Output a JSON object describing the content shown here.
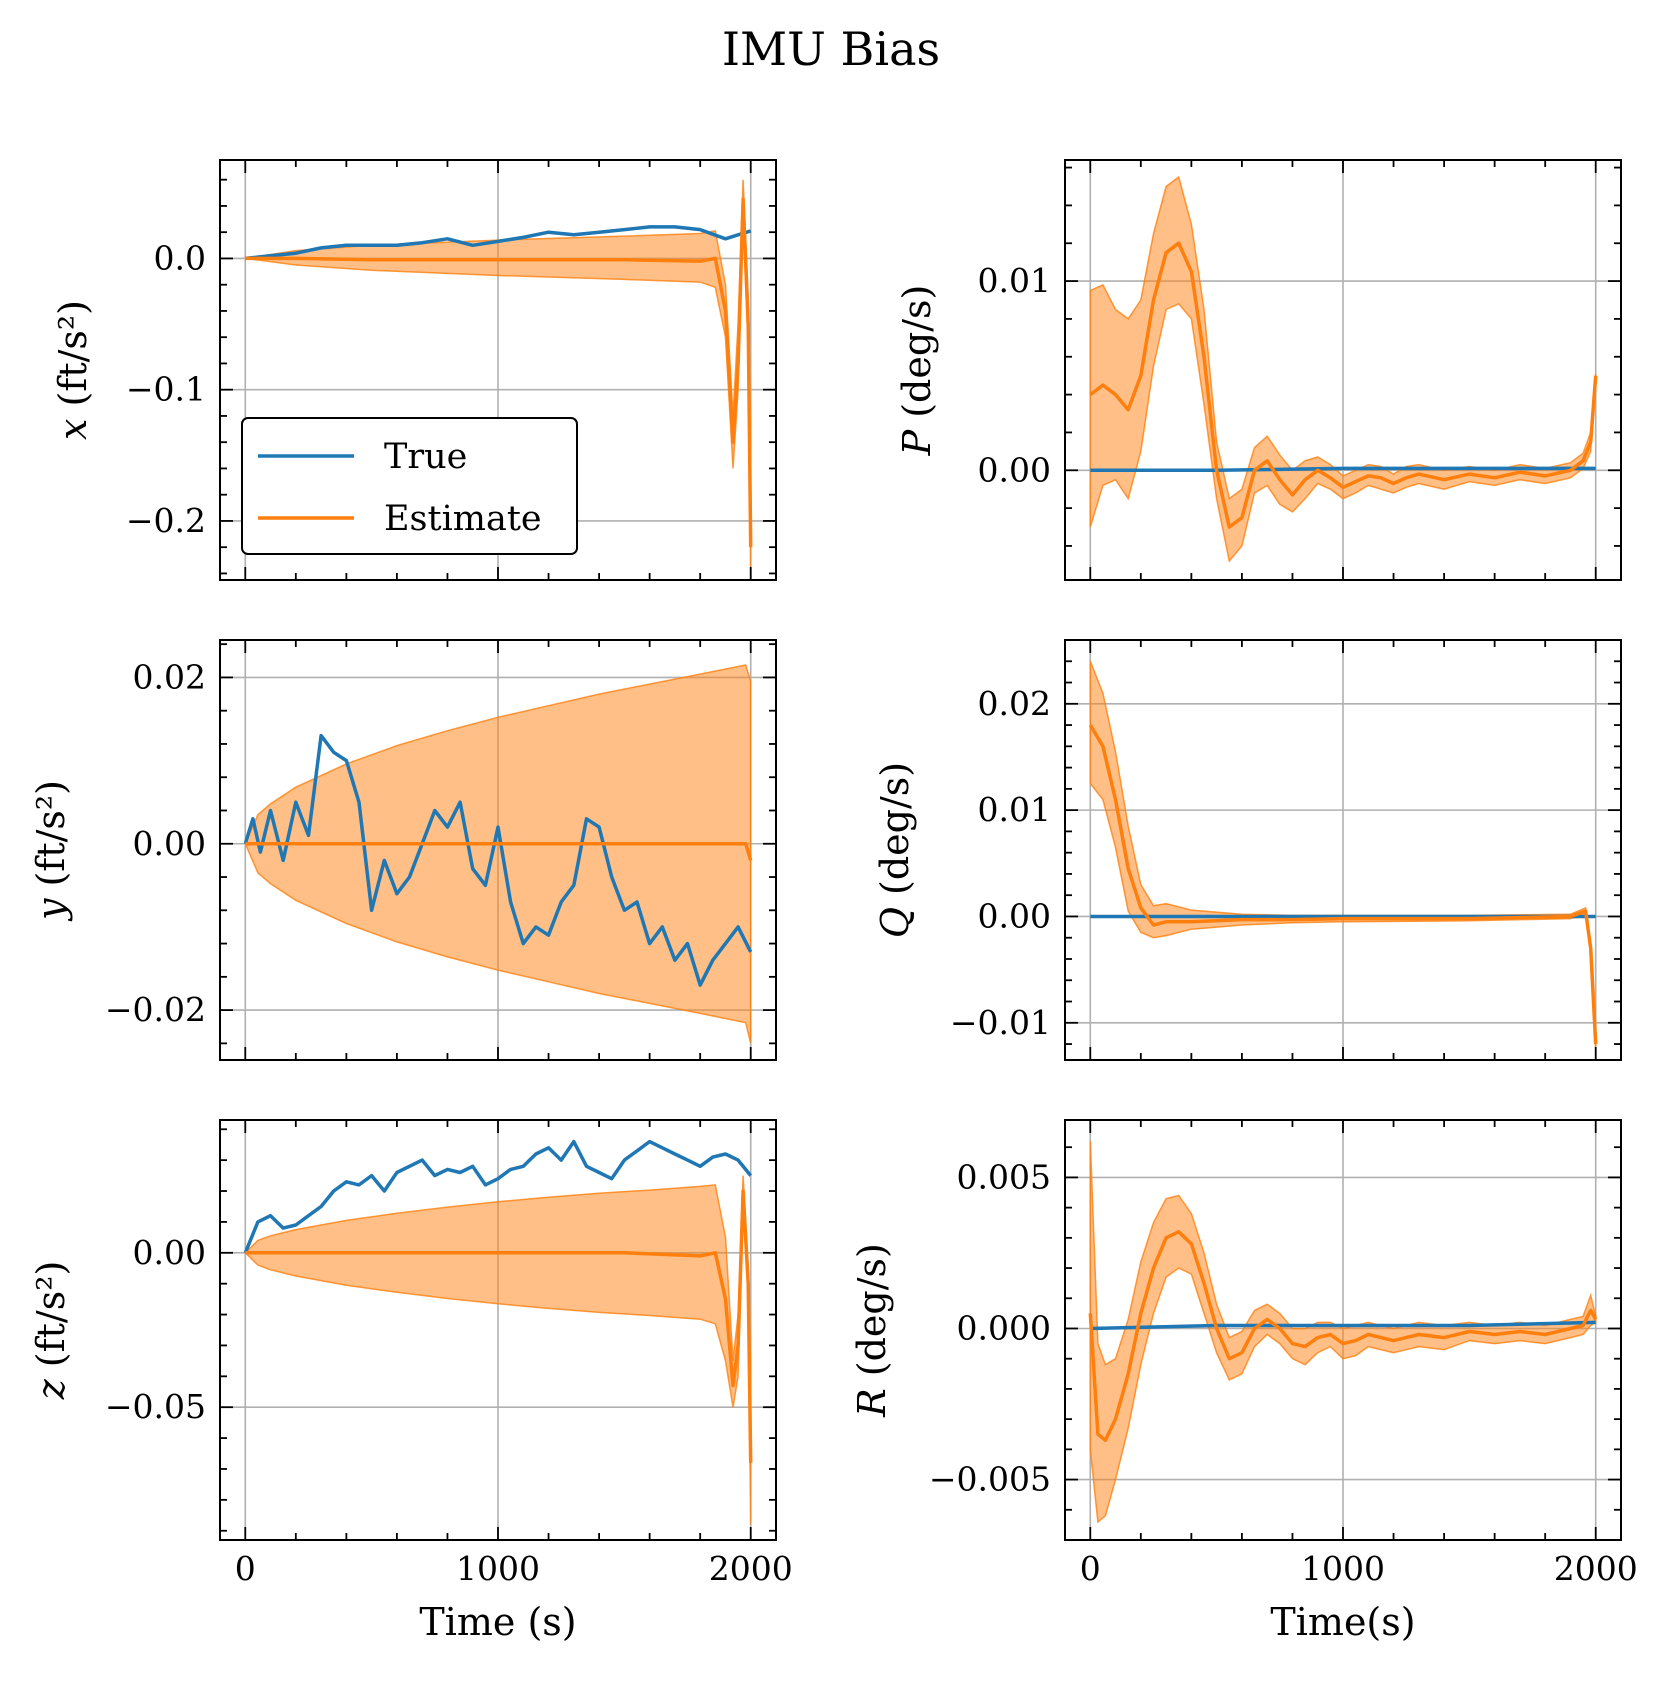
{
  "title": "IMU Bias",
  "colors": {
    "true": "#1f77b4",
    "estimate": "#ff7f0e",
    "band": "#ff7f0e",
    "grid": "#b0b0b0"
  },
  "legend": {
    "placement": "lower-left",
    "entries": [
      "True",
      "Estimate"
    ]
  },
  "chart_data": [
    {
      "id": "x",
      "type": "line",
      "grid": true,
      "ylabel": {
        "sym": "x",
        "unit": "(ft/s²)"
      },
      "xlabel": "",
      "xlim": [
        -100,
        2100
      ],
      "ylim": [
        -0.245,
        0.075
      ],
      "xticks": [
        0,
        1000,
        2000
      ],
      "xtick_labels": [],
      "yticks": [
        -0.2,
        -0.1,
        0.0
      ],
      "ytick_labels": [
        "−0.2",
        "−0.1",
        "0.0"
      ],
      "true": {
        "name": "True",
        "x": [
          0,
          100,
          200,
          300,
          400,
          500,
          600,
          700,
          800,
          900,
          1000,
          1100,
          1200,
          1300,
          1400,
          1500,
          1600,
          1700,
          1800,
          1900,
          1950,
          2000
        ],
        "y": [
          0.0,
          0.002,
          0.004,
          0.008,
          0.01,
          0.01,
          0.01,
          0.012,
          0.015,
          0.01,
          0.013,
          0.016,
          0.02,
          0.018,
          0.02,
          0.022,
          0.024,
          0.024,
          0.022,
          0.015,
          0.018,
          0.021
        ]
      },
      "estimate": {
        "name": "Estimate",
        "x": [
          0,
          200,
          500,
          1000,
          1500,
          1800,
          1860,
          1900,
          1930,
          1950,
          1970,
          1990,
          2000
        ],
        "y": [
          0.0,
          0.0,
          -0.001,
          -0.001,
          -0.001,
          -0.002,
          0.0,
          -0.04,
          -0.14,
          -0.08,
          0.045,
          -0.05,
          -0.22
        ]
      },
      "band": {
        "x": [
          0,
          200,
          500,
          1000,
          1500,
          1800,
          1860,
          1900,
          1930,
          1950,
          1970,
          1990,
          2000
        ],
        "upper": [
          0.0,
          0.006,
          0.01,
          0.014,
          0.017,
          0.019,
          0.021,
          -0.02,
          -0.12,
          -0.05,
          0.06,
          -0.03,
          -0.2
        ],
        "lower": [
          0.0,
          -0.005,
          -0.009,
          -0.013,
          -0.016,
          -0.018,
          -0.022,
          -0.06,
          -0.16,
          -0.1,
          0.03,
          -0.07,
          -0.24
        ]
      }
    },
    {
      "id": "P",
      "type": "line",
      "grid": true,
      "ylabel": {
        "sym": "P",
        "unit": "(deg/s)"
      },
      "xlabel": "",
      "xlim": [
        -100,
        2100
      ],
      "ylim": [
        -0.0058,
        0.0164
      ],
      "xticks": [
        0,
        1000,
        2000
      ],
      "xtick_labels": [],
      "yticks": [
        0.0,
        0.01
      ],
      "ytick_labels": [
        "0.00",
        "0.01"
      ],
      "true": {
        "name": "True",
        "x": [
          0,
          500,
          1000,
          1500,
          2000
        ],
        "y": [
          0.0,
          0.0,
          0.0001,
          0.0001,
          0.0001
        ]
      },
      "estimate": {
        "name": "Estimate",
        "x": [
          0,
          50,
          100,
          150,
          200,
          250,
          300,
          350,
          400,
          450,
          500,
          550,
          600,
          650,
          700,
          750,
          800,
          850,
          900,
          950,
          1000,
          1050,
          1100,
          1150,
          1200,
          1250,
          1300,
          1400,
          1500,
          1600,
          1700,
          1800,
          1900,
          1950,
          1980,
          2000
        ],
        "y": [
          0.004,
          0.0045,
          0.004,
          0.0032,
          0.005,
          0.009,
          0.0115,
          0.012,
          0.0105,
          0.006,
          0.0,
          -0.003,
          -0.0025,
          0.0,
          0.0005,
          -0.0005,
          -0.0013,
          -0.0005,
          0.0,
          -0.0004,
          -0.0009,
          -0.0006,
          -0.0003,
          -0.0004,
          -0.0007,
          -0.0004,
          -0.0002,
          -0.0005,
          -0.0002,
          -0.0004,
          -0.0001,
          -0.0003,
          0.0,
          0.0005,
          0.0015,
          0.005
        ]
      },
      "band": {
        "x": [
          0,
          50,
          100,
          150,
          200,
          250,
          300,
          350,
          400,
          450,
          500,
          550,
          600,
          650,
          700,
          750,
          800,
          850,
          900,
          950,
          1000,
          1050,
          1100,
          1150,
          1200,
          1250,
          1300,
          1400,
          1500,
          1600,
          1700,
          1800,
          1900,
          1950,
          1980,
          2000
        ],
        "upper": [
          0.0095,
          0.0098,
          0.0085,
          0.008,
          0.009,
          0.0125,
          0.015,
          0.0155,
          0.013,
          0.0085,
          0.0015,
          -0.0015,
          -0.001,
          0.0012,
          0.0018,
          0.0008,
          0.0,
          0.0005,
          0.0007,
          0.0003,
          -0.0003,
          0.0,
          0.0003,
          0.0002,
          -0.0002,
          0.0002,
          0.0003,
          0.0,
          0.0002,
          0.0,
          0.0003,
          0.0001,
          0.0004,
          0.0009,
          0.002,
          0.0051
        ],
        "lower": [
          -0.003,
          -0.0008,
          -0.0005,
          -0.0015,
          0.001,
          0.0055,
          0.0085,
          0.0088,
          0.008,
          0.0035,
          -0.0015,
          -0.0048,
          -0.004,
          -0.0012,
          -0.0008,
          -0.0018,
          -0.0022,
          -0.0015,
          -0.0007,
          -0.001,
          -0.0015,
          -0.0012,
          -0.0008,
          -0.001,
          -0.0012,
          -0.0009,
          -0.0007,
          -0.001,
          -0.0006,
          -0.0008,
          -0.0005,
          -0.0007,
          -0.0004,
          0.0001,
          0.001,
          0.0049
        ]
      }
    },
    {
      "id": "y",
      "type": "line",
      "grid": true,
      "ylabel": {
        "sym": "y",
        "unit": "(ft/s²)"
      },
      "xlabel": "",
      "xlim": [
        -100,
        2100
      ],
      "ylim": [
        -0.026,
        0.0245
      ],
      "xticks": [
        0,
        1000,
        2000
      ],
      "xtick_labels": [],
      "yticks": [
        -0.02,
        0.0,
        0.02
      ],
      "ytick_labels": [
        "−0.02",
        "0.00",
        "0.02"
      ],
      "true": {
        "name": "True",
        "x": [
          0,
          30,
          60,
          100,
          150,
          200,
          250,
          300,
          350,
          400,
          450,
          500,
          550,
          600,
          650,
          700,
          750,
          800,
          850,
          900,
          950,
          1000,
          1050,
          1100,
          1150,
          1200,
          1250,
          1300,
          1350,
          1400,
          1450,
          1500,
          1550,
          1600,
          1650,
          1700,
          1750,
          1800,
          1850,
          1900,
          1950,
          2000
        ],
        "y": [
          0.0,
          0.003,
          -0.001,
          0.004,
          -0.002,
          0.005,
          0.001,
          0.013,
          0.011,
          0.01,
          0.005,
          -0.008,
          -0.002,
          -0.006,
          -0.004,
          0.0,
          0.004,
          0.002,
          0.005,
          -0.003,
          -0.005,
          0.002,
          -0.007,
          -0.012,
          -0.01,
          -0.011,
          -0.007,
          -0.005,
          0.003,
          0.002,
          -0.004,
          -0.008,
          -0.007,
          -0.012,
          -0.01,
          -0.014,
          -0.012,
          -0.017,
          -0.014,
          -0.012,
          -0.01,
          -0.013
        ]
      },
      "estimate": {
        "name": "Estimate",
        "x": [
          0,
          500,
          1000,
          1500,
          1980,
          2000
        ],
        "y": [
          0.0,
          0.0,
          0.0,
          0.0,
          0.0,
          -0.002
        ]
      },
      "band": {
        "x": [
          0,
          50,
          100,
          200,
          400,
          600,
          800,
          1000,
          1200,
          1400,
          1600,
          1800,
          1980,
          2000
        ],
        "upper": [
          0.0,
          0.0035,
          0.0048,
          0.0068,
          0.0096,
          0.0118,
          0.0136,
          0.0152,
          0.0166,
          0.018,
          0.0192,
          0.0204,
          0.0215,
          0.0195
        ],
        "lower": [
          0.0,
          -0.0035,
          -0.0048,
          -0.0068,
          -0.0096,
          -0.0118,
          -0.0136,
          -0.0152,
          -0.0166,
          -0.018,
          -0.0192,
          -0.0204,
          -0.0215,
          -0.024
        ]
      }
    },
    {
      "id": "Q",
      "type": "line",
      "grid": true,
      "ylabel": {
        "sym": "Q",
        "unit": "(deg/s)"
      },
      "xlabel": "",
      "xlim": [
        -100,
        2100
      ],
      "ylim": [
        -0.0135,
        0.026
      ],
      "xticks": [
        0,
        1000,
        2000
      ],
      "xtick_labels": [],
      "yticks": [
        -0.01,
        0.0,
        0.01,
        0.02
      ],
      "ytick_labels": [
        "−0.01",
        "0.00",
        "0.01",
        "0.02"
      ],
      "true": {
        "name": "True",
        "x": [
          0,
          500,
          1000,
          1500,
          2000
        ],
        "y": [
          0.0,
          0.0,
          0.0,
          0.0,
          0.0
        ]
      },
      "estimate": {
        "name": "Estimate",
        "x": [
          0,
          50,
          100,
          150,
          200,
          250,
          300,
          400,
          600,
          800,
          1000,
          1500,
          1900,
          1960,
          1980,
          2000
        ],
        "y": [
          0.018,
          0.016,
          0.011,
          0.0045,
          0.0008,
          -0.0008,
          -0.0005,
          -0.0005,
          -0.0003,
          -0.0003,
          -0.0002,
          -0.0002,
          0.0,
          0.0005,
          -0.003,
          -0.012
        ]
      },
      "band": {
        "x": [
          0,
          50,
          100,
          150,
          200,
          250,
          300,
          400,
          600,
          800,
          1000,
          1500,
          1900,
          1960,
          1980,
          2000
        ],
        "upper": [
          0.024,
          0.021,
          0.0155,
          0.0085,
          0.003,
          0.001,
          0.0012,
          0.0006,
          0.0002,
          0.0001,
          0.0001,
          0.0001,
          0.0002,
          0.0008,
          -0.0025,
          -0.0115
        ],
        "lower": [
          0.0125,
          0.011,
          0.0065,
          0.0005,
          -0.0015,
          -0.002,
          -0.0018,
          -0.0012,
          -0.0008,
          -0.0006,
          -0.0005,
          -0.0004,
          -0.0002,
          0.0002,
          -0.0035,
          -0.0125
        ]
      }
    },
    {
      "id": "z",
      "type": "line",
      "grid": true,
      "ylabel": {
        "sym": "z",
        "unit": "(ft/s²)"
      },
      "xlabel": "Time (s)",
      "xlim": [
        -100,
        2100
      ],
      "ylim": [
        -0.093,
        0.043
      ],
      "xticks": [
        0,
        1000,
        2000
      ],
      "xtick_labels": [
        "0",
        "1000",
        "2000"
      ],
      "yticks": [
        -0.05,
        0.0
      ],
      "ytick_labels": [
        "−0.05",
        "0.00"
      ],
      "true": {
        "name": "True",
        "x": [
          0,
          50,
          100,
          150,
          200,
          250,
          300,
          350,
          400,
          450,
          500,
          550,
          600,
          650,
          700,
          750,
          800,
          850,
          900,
          950,
          1000,
          1050,
          1100,
          1150,
          1200,
          1250,
          1300,
          1350,
          1400,
          1450,
          1500,
          1550,
          1600,
          1650,
          1700,
          1750,
          1800,
          1850,
          1900,
          1950,
          2000
        ],
        "y": [
          0.0,
          0.01,
          0.012,
          0.008,
          0.009,
          0.012,
          0.015,
          0.02,
          0.023,
          0.022,
          0.025,
          0.02,
          0.026,
          0.028,
          0.03,
          0.025,
          0.027,
          0.026,
          0.028,
          0.022,
          0.024,
          0.027,
          0.028,
          0.032,
          0.034,
          0.03,
          0.036,
          0.028,
          0.026,
          0.024,
          0.03,
          0.033,
          0.036,
          0.034,
          0.032,
          0.03,
          0.028,
          0.031,
          0.032,
          0.03,
          0.025
        ]
      },
      "estimate": {
        "name": "Estimate",
        "x": [
          0,
          500,
          1000,
          1500,
          1800,
          1860,
          1900,
          1930,
          1950,
          1970,
          1990,
          2000
        ],
        "y": [
          0.0,
          0.0,
          0.0,
          0.0,
          -0.001,
          0.0,
          -0.015,
          -0.043,
          -0.03,
          0.02,
          -0.01,
          -0.068
        ]
      },
      "band": {
        "x": [
          0,
          50,
          100,
          200,
          400,
          600,
          800,
          1000,
          1200,
          1400,
          1600,
          1800,
          1860,
          1900,
          1930,
          1950,
          1970,
          1990,
          2000
        ],
        "upper": [
          0.0,
          0.004,
          0.0055,
          0.0075,
          0.0105,
          0.0128,
          0.0148,
          0.0165,
          0.018,
          0.0193,
          0.0203,
          0.0215,
          0.022,
          0.005,
          -0.035,
          -0.02,
          0.025,
          -0.005,
          -0.06
        ],
        "lower": [
          0.0,
          -0.004,
          -0.0055,
          -0.0075,
          -0.0105,
          -0.0128,
          -0.0148,
          -0.0165,
          -0.018,
          -0.0193,
          -0.0203,
          -0.0215,
          -0.023,
          -0.035,
          -0.05,
          -0.04,
          0.015,
          -0.015,
          -0.088
        ]
      }
    },
    {
      "id": "R",
      "type": "line",
      "grid": true,
      "ylabel": {
        "sym": "R",
        "unit": "(deg/s)"
      },
      "xlabel": "Time(s)",
      "xlim": [
        -100,
        2100
      ],
      "ylim": [
        -0.007,
        0.0069
      ],
      "xticks": [
        0,
        1000,
        2000
      ],
      "xtick_labels": [
        "0",
        "1000",
        "2000"
      ],
      "yticks": [
        -0.005,
        0.0,
        0.005
      ],
      "ytick_labels": [
        "−0.005",
        "0.000",
        "0.005"
      ],
      "true": {
        "name": "True",
        "x": [
          0,
          500,
          1000,
          1500,
          2000
        ],
        "y": [
          0.0,
          0.0001,
          0.0001,
          0.0001,
          0.0002
        ]
      },
      "estimate": {
        "name": "Estimate",
        "x": [
          0,
          30,
          60,
          100,
          150,
          200,
          250,
          300,
          350,
          400,
          450,
          500,
          550,
          600,
          650,
          700,
          750,
          800,
          850,
          900,
          950,
          1000,
          1050,
          1100,
          1150,
          1200,
          1300,
          1400,
          1500,
          1600,
          1700,
          1800,
          1900,
          1950,
          1980,
          2000
        ],
        "y": [
          0.0005,
          -0.0035,
          -0.0037,
          -0.003,
          -0.0015,
          0.0005,
          0.002,
          0.003,
          0.0032,
          0.0028,
          0.0015,
          0.0,
          -0.001,
          -0.0008,
          0.0,
          0.0003,
          0.0,
          -0.0005,
          -0.0006,
          -0.0003,
          -0.0002,
          -0.0005,
          -0.0004,
          -0.0002,
          -0.0003,
          -0.0004,
          -0.0002,
          -0.0003,
          -0.0001,
          -0.0002,
          -0.0001,
          -0.0002,
          0.0,
          0.0001,
          0.0006,
          0.0003
        ]
      },
      "band": {
        "x": [
          0,
          30,
          60,
          100,
          150,
          200,
          250,
          300,
          350,
          400,
          450,
          500,
          550,
          600,
          650,
          700,
          750,
          800,
          850,
          900,
          950,
          1000,
          1050,
          1100,
          1150,
          1200,
          1300,
          1400,
          1500,
          1600,
          1700,
          1800,
          1900,
          1950,
          1980,
          2000
        ],
        "upper": [
          0.0062,
          -0.0005,
          -0.0012,
          -0.001,
          0.0003,
          0.0022,
          0.0035,
          0.0043,
          0.0044,
          0.0038,
          0.0025,
          0.0008,
          -0.0003,
          -0.0001,
          0.0006,
          0.0008,
          0.0005,
          0.0,
          0.0,
          0.0002,
          0.0002,
          0.0,
          0.0001,
          0.0002,
          0.0001,
          0.0,
          0.0002,
          0.0001,
          0.0002,
          0.0001,
          0.0002,
          0.0001,
          0.0003,
          0.0004,
          0.0011,
          0.0004
        ],
        "lower": [
          -0.004,
          -0.0064,
          -0.0062,
          -0.005,
          -0.0033,
          -0.0012,
          0.0005,
          0.0017,
          0.002,
          0.0018,
          0.0005,
          -0.0008,
          -0.0017,
          -0.0015,
          -0.0006,
          -0.0002,
          -0.0005,
          -0.001,
          -0.0012,
          -0.0008,
          -0.0006,
          -0.001,
          -0.0009,
          -0.0006,
          -0.0007,
          -0.0008,
          -0.0006,
          -0.0007,
          -0.0004,
          -0.0005,
          -0.0004,
          -0.0005,
          -0.0003,
          -0.0002,
          0.0001,
          0.0002
        ]
      }
    }
  ]
}
